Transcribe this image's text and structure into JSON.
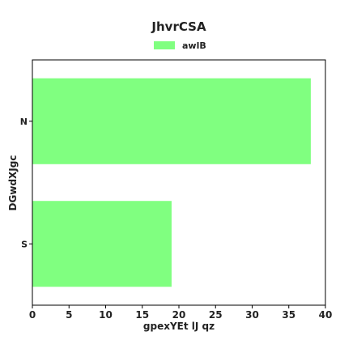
{
  "chart_data": {
    "type": "bar",
    "orientation": "horizontal",
    "title": "JhvrCSA",
    "xlabel": "gpexYEt lJ qz",
    "ylabel": "DGwdXJgc",
    "categories": [
      "N",
      "S"
    ],
    "series": [
      {
        "name": "awlB",
        "values": [
          38,
          19
        ],
        "color": "#80ff80"
      }
    ],
    "xlim": [
      0,
      40
    ],
    "xticks": [
      0,
      5,
      10,
      15,
      20,
      25,
      30,
      35,
      40
    ],
    "grid": false,
    "legend_position": "top-center"
  }
}
